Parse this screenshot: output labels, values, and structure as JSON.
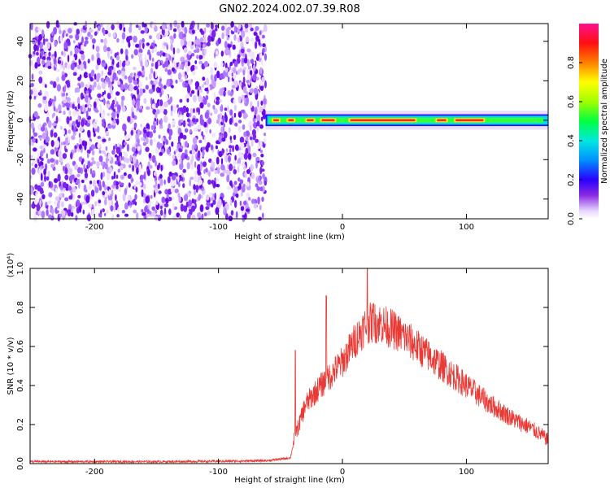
{
  "title": "GN02.2024.002.07.39.R08",
  "colors": {
    "snr_line": "#e83a36",
    "axis": "#000000"
  },
  "chart_data": [
    {
      "type": "heatmap",
      "xlabel": "Height of straight line (km)",
      "ylabel": "Frequency (Hz)",
      "xlim": [
        -252,
        166
      ],
      "ylim": [
        -50,
        49
      ],
      "xticks": [
        -200,
        -100,
        0,
        100
      ],
      "xtick_labels": [
        "-200",
        "-100",
        "0",
        "100"
      ],
      "yticks": [
        -40,
        -20,
        0,
        20,
        40
      ],
      "ytick_labels": [
        "-40",
        "-20",
        "0",
        "20",
        "40"
      ],
      "noise_region": {
        "x": [
          -252,
          -62
        ],
        "y": [
          -50,
          49
        ]
      },
      "signal_band": {
        "x": [
          -62,
          166
        ],
        "center_hz": 0,
        "width_hz": 3
      },
      "colorbar": {
        "label": "Normalized spectral amplitude",
        "range": [
          0,
          1
        ],
        "ticks": [
          0.0,
          0.2,
          0.4,
          0.6,
          0.8
        ],
        "tick_labels": [
          "0.0",
          "0.2",
          "0.4",
          "0.6",
          "0.8"
        ],
        "colormap": "rainbow"
      }
    },
    {
      "type": "line",
      "xlabel": "Height of straight line (km)",
      "ylabel": "SNR (10 * v/v)",
      "y_multiplier": "(x10⁴)",
      "xlim": [
        -252,
        166
      ],
      "ylim": [
        0,
        1.0
      ],
      "xticks": [
        -200,
        -100,
        0,
        100
      ],
      "xtick_labels": [
        "-200",
        "-100",
        "0",
        "100"
      ],
      "yticks": [
        0.0,
        0.2,
        0.4,
        0.6,
        0.8,
        1.0
      ],
      "ytick_labels": [
        "0.0",
        "0.2",
        "0.4",
        "0.6",
        "0.8",
        "1.0"
      ],
      "series": [
        {
          "x": [
            -252,
            -200,
            -150,
            -100,
            -60,
            -42,
            -38,
            -35,
            -30,
            -20,
            -10,
            0,
            10,
            20,
            30,
            40,
            50,
            60,
            70,
            80,
            90,
            100,
            110,
            120,
            130,
            140,
            150,
            160,
            166
          ],
          "y": [
            0.01,
            0.01,
            0.01,
            0.012,
            0.015,
            0.03,
            0.15,
            0.2,
            0.3,
            0.38,
            0.45,
            0.52,
            0.63,
            0.72,
            0.72,
            0.69,
            0.65,
            0.6,
            0.55,
            0.5,
            0.45,
            0.4,
            0.35,
            0.3,
            0.26,
            0.22,
            0.19,
            0.15,
            0.12
          ],
          "spikes": [
            {
              "x": -38,
              "y": 0.58
            },
            {
              "x": -13,
              "y": 0.86
            },
            {
              "x": 20,
              "y": 1.0
            },
            {
              "x": 25,
              "y": 0.82
            }
          ]
        }
      ]
    }
  ]
}
